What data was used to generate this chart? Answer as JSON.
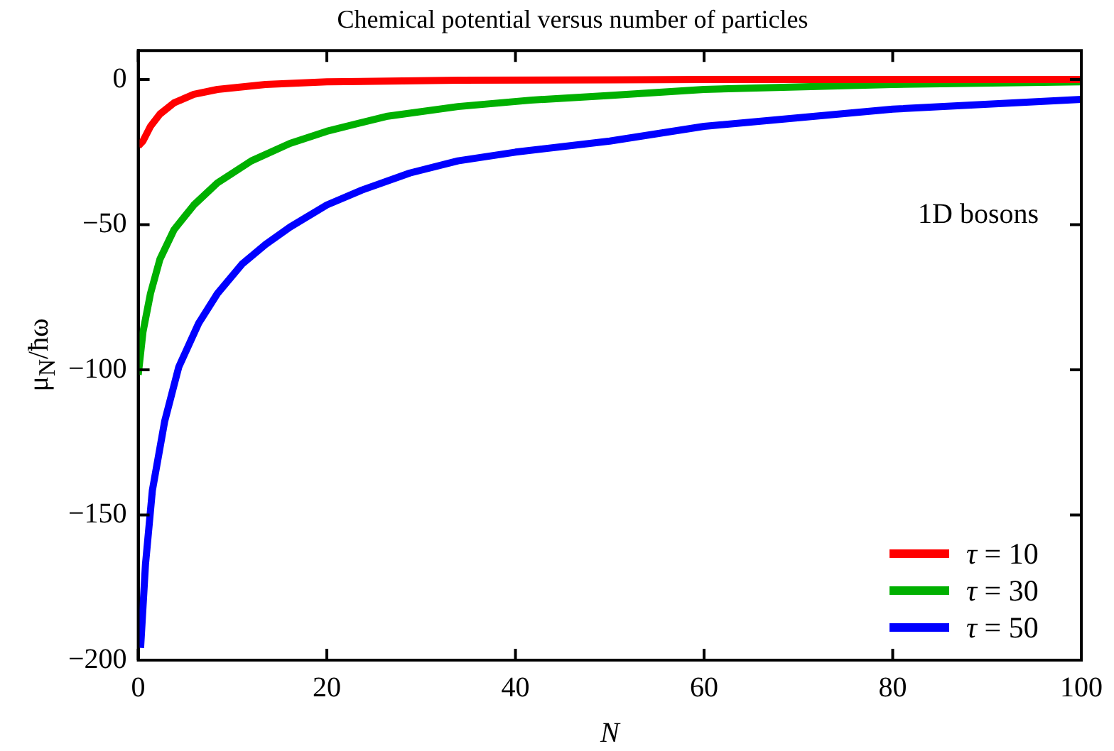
{
  "chart_data": {
    "type": "line",
    "title": "Chemical potential versus number of particles",
    "xlabel": "N",
    "ylabel": "μ$_{N}$/ħω",
    "annotations": [
      "1D bosons"
    ],
    "xlim": [
      0,
      100
    ],
    "xticks": [
      0,
      20,
      40,
      60,
      80,
      100
    ],
    "ylim": [
      -200,
      10
    ],
    "yticks": [
      {
        "value": -200,
        "label": "−200"
      },
      {
        "value": -150,
        "label": "−150"
      },
      {
        "value": -100,
        "label": "−100"
      },
      {
        "value": -50,
        "label": "−50"
      },
      0
    ],
    "grid": false,
    "legend": "bottom right",
    "marker": "none",
    "line_style": "solid",
    "series": [
      {
        "name": "τ = 10",
        "color": "#ff0000",
        "x": [
          0,
          0.5,
          1.3,
          2.3,
          3.8,
          5.9,
          8.4,
          13.5,
          20,
          34,
          50,
          60,
          80,
          100
        ],
        "values": [
          -22.9,
          -21.2,
          -16.1,
          -11.9,
          -8,
          -5.1,
          -3.4,
          -1.7,
          -0.8,
          -0.2,
          -0.1,
          0,
          0,
          0
        ]
      },
      {
        "name": "τ = 30",
        "color": "#00b000",
        "x": [
          0,
          0.5,
          1.3,
          2.3,
          3.8,
          5.9,
          8.4,
          12,
          16.1,
          20,
          26.3,
          33.9,
          41.6,
          50.3,
          60,
          80,
          100
        ],
        "values": [
          -101.7,
          -87,
          -73.7,
          -61.9,
          -51.7,
          -43.2,
          -35.6,
          -28,
          -22,
          -17.8,
          -12.7,
          -9.3,
          -7.1,
          -5.4,
          -3.4,
          -1.7,
          -0.8
        ]
      },
      {
        "name": "τ = 50",
        "color": "#0000ff",
        "x": [
          0.25,
          0.77,
          1.5,
          2.8,
          4.3,
          6.4,
          8.4,
          11,
          13.5,
          16.1,
          20,
          23.7,
          28.8,
          33.9,
          40,
          50,
          60,
          80,
          100
        ],
        "values": [
          -195.8,
          -167,
          -141.5,
          -117.8,
          -99,
          -84,
          -73.7,
          -63.6,
          -56.8,
          -50.8,
          -43.2,
          -38.1,
          -32.2,
          -28,
          -25,
          -21.2,
          -16.1,
          -10.2,
          -6.8
        ]
      }
    ]
  }
}
